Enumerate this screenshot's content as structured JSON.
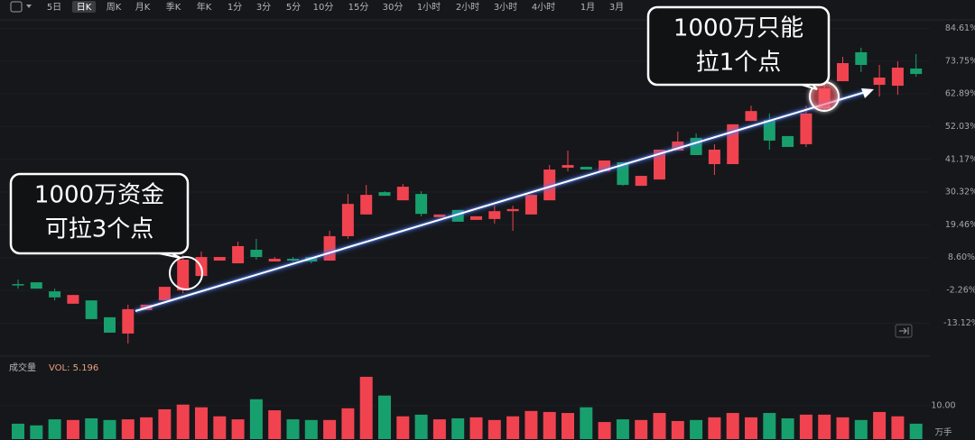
{
  "toolbar": {
    "items": [
      "5日",
      "日K",
      "周K",
      "月K",
      "季K",
      "年K",
      "1分",
      "3分",
      "5分",
      "10分",
      "15分",
      "30分",
      "1小时",
      "2小时",
      "3小时",
      "4小时",
      "1月",
      "3月"
    ],
    "active": "日K"
  },
  "chart_data": {
    "type": "candlestick",
    "up_color": "#f0434f",
    "down_color": "#17a06d",
    "open": [
      -0.2,
      0.4,
      -2.6,
      -6.7,
      -5.6,
      -11.2,
      -16.6,
      -8.8,
      -5.6,
      -2.3,
      2.5,
      7.6,
      6.7,
      11.2,
      7.3,
      8.2,
      8.8,
      7.6,
      15.7,
      22.9,
      30.3,
      27.6,
      29.7,
      22.0,
      24.4,
      21.1,
      21.4,
      24.0,
      22.9,
      27.6,
      38.4,
      38.7,
      37.2,
      40.2,
      32.4,
      34.5,
      44.1,
      48.3,
      39.6,
      39.6,
      53.9,
      54.2,
      48.9,
      46.2,
      58.1,
      67.1,
      76.7,
      65.9,
      65.6,
      71.3
    ],
    "close": [
      -0.4,
      -1.7,
      -4.6,
      -3.8,
      -11.8,
      -16.3,
      -8.5,
      -7.0,
      -1.1,
      7.9,
      8.8,
      8.8,
      12.4,
      8.8,
      8.2,
      7.6,
      7.3,
      15.7,
      26.4,
      29.4,
      29.1,
      32.1,
      23.1,
      22.9,
      20.5,
      22.3,
      24.0,
      24.7,
      29.4,
      37.8,
      39.3,
      37.8,
      40.8,
      32.7,
      35.7,
      44.4,
      47.1,
      42.6,
      44.4,
      52.8,
      57.2,
      47.4,
      45.3,
      56.4,
      64.7,
      73.1,
      72.5,
      68.3,
      71.6,
      69.5
    ],
    "high": [
      1.3,
      0.4,
      -1.7,
      -3.8,
      -5.6,
      -11.2,
      -7.0,
      -7.0,
      -1.1,
      9.4,
      10.6,
      8.8,
      13.9,
      14.8,
      8.8,
      8.8,
      8.8,
      17.5,
      29.7,
      32.7,
      30.6,
      33.0,
      30.6,
      22.9,
      24.4,
      22.3,
      25.8,
      25.8,
      29.4,
      39.3,
      44.1,
      38.7,
      40.8,
      40.2,
      35.7,
      44.4,
      50.4,
      49.8,
      46.2,
      52.8,
      59.0,
      56.4,
      48.9,
      59.0,
      66.5,
      75.2,
      78.2,
      72.5,
      73.7,
      76.1
    ],
    "low": [
      -1.7,
      -1.7,
      -5.6,
      -6.7,
      -11.8,
      -16.3,
      -19.9,
      -8.8,
      -5.6,
      -3.2,
      1.9,
      7.6,
      6.7,
      7.9,
      7.3,
      7.3,
      6.7,
      7.6,
      14.8,
      22.9,
      29.1,
      27.6,
      22.3,
      22.0,
      20.5,
      21.1,
      19.9,
      17.5,
      22.9,
      27.6,
      37.2,
      37.8,
      37.2,
      32.4,
      32.4,
      34.5,
      44.1,
      42.6,
      36.0,
      39.6,
      53.9,
      44.4,
      45.3,
      45.3,
      56.9,
      67.1,
      70.1,
      62.0,
      62.6,
      68.6
    ],
    "ylim": [
      -21.1,
      88.05
    ],
    "yticks": [
      {
        "value": 84.61,
        "label": "84.61%"
      },
      {
        "value": 73.75,
        "label": "73.75%"
      },
      {
        "value": 62.89,
        "label": "62.89%"
      },
      {
        "value": 52.03,
        "label": "52.03%"
      },
      {
        "value": 41.17,
        "label": "41.17%"
      },
      {
        "value": 30.32,
        "label": "30.32%"
      },
      {
        "value": 19.46,
        "label": "19.46%"
      },
      {
        "value": 8.6,
        "label": "8.60%"
      },
      {
        "value": -2.26,
        "label": "-2.26%"
      },
      {
        "value": -13.12,
        "label": "-13.12%"
      }
    ],
    "grid": true,
    "volume": {
      "title": "成交量",
      "label": "VOL: 5.196",
      "unit": "万手",
      "values": [
        4.6,
        4.1,
        5.9,
        5.7,
        6.2,
        5.7,
        5.9,
        6.5,
        8.9,
        10.3,
        9.5,
        6.8,
        5.9,
        11.9,
        8.6,
        5.9,
        5.7,
        5.7,
        9.2,
        18.6,
        13.0,
        6.8,
        7.3,
        5.9,
        6.2,
        6.5,
        5.7,
        6.8,
        8.4,
        8.1,
        7.8,
        9.5,
        5.1,
        5.9,
        5.7,
        7.8,
        5.4,
        5.7,
        6.5,
        7.8,
        6.5,
        7.8,
        6.2,
        7.3,
        7.3,
        6.5,
        5.7,
        8.1,
        6.8,
        4.6
      ],
      "ylim": [
        0,
        21
      ],
      "yticks": [
        {
          "value": 10,
          "label": "10.00"
        }
      ]
    },
    "annotations": [
      {
        "lines": [
          "1000万资金",
          "可拉3个点"
        ]
      },
      {
        "lines": [
          "1000万只能",
          "拉1个点"
        ]
      }
    ]
  }
}
